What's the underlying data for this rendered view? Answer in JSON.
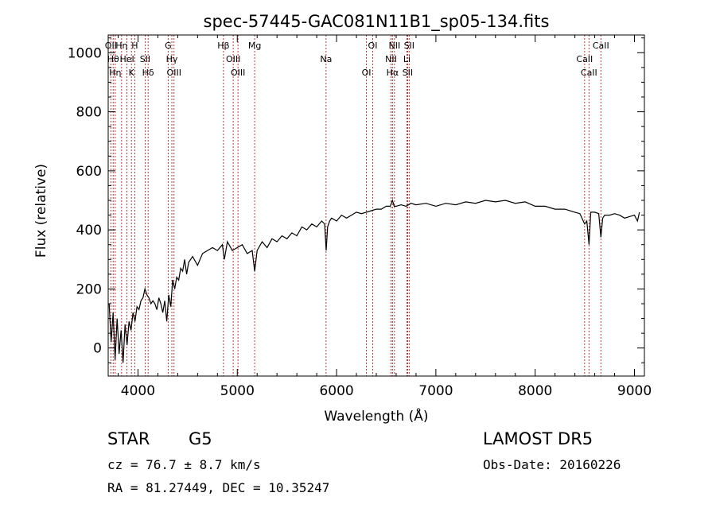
{
  "chart_data": {
    "type": "line",
    "title": "spec-57445-GAC081N11B1_sp05-134.fits",
    "xlabel": "Wavelength (Å)",
    "ylabel": "Flux (relative)",
    "xlim": [
      3700,
      9100
    ],
    "ylim": [
      -95,
      1060
    ],
    "xticks": [
      4000,
      5000,
      6000,
      7000,
      8000,
      9000
    ],
    "yticks": [
      0,
      200,
      400,
      600,
      800,
      1000
    ],
    "line_color": "#000000",
    "marker_color": "#b22222",
    "series": [
      {
        "x": [
          3710,
          3730,
          3750,
          3770,
          3790,
          3810,
          3830,
          3850,
          3870,
          3890,
          3910,
          3930,
          3950,
          3970,
          3990,
          4010,
          4030,
          4050,
          4070,
          4090,
          4110,
          4130,
          4150,
          4170,
          4190,
          4210,
          4230,
          4250,
          4270,
          4290,
          4310,
          4330,
          4350,
          4370,
          4390,
          4410,
          4430,
          4450,
          4470,
          4490,
          4510,
          4550,
          4600,
          4650,
          4700,
          4750,
          4800,
          4850,
          4870,
          4900,
          4950,
          5000,
          5050,
          5100,
          5150,
          5175,
          5200,
          5250,
          5300,
          5350,
          5400,
          5450,
          5500,
          5550,
          5600,
          5650,
          5700,
          5750,
          5800,
          5850,
          5880,
          5895,
          5910,
          5930,
          5950,
          6000,
          6050,
          6100,
          6150,
          6200,
          6250,
          6300,
          6350,
          6400,
          6450,
          6500,
          6540,
          6563,
          6580,
          6600,
          6650,
          6700,
          6750,
          6800,
          6900,
          7000,
          7100,
          7200,
          7300,
          7400,
          7500,
          7600,
          7700,
          7800,
          7900,
          8000,
          8100,
          8200,
          8300,
          8400,
          8450,
          8498,
          8520,
          8542,
          8560,
          8600,
          8640,
          8662,
          8680,
          8700,
          8750,
          8800,
          8850,
          8900,
          8950,
          9000,
          9030,
          9050
        ],
        "y": [
          150,
          20,
          120,
          -40,
          100,
          -20,
          60,
          -50,
          80,
          10,
          90,
          60,
          120,
          90,
          140,
          130,
          160,
          170,
          200,
          180,
          170,
          150,
          160,
          150,
          130,
          170,
          150,
          120,
          160,
          90,
          180,
          140,
          230,
          200,
          240,
          230,
          270,
          260,
          300,
          250,
          290,
          310,
          280,
          320,
          330,
          340,
          330,
          350,
          300,
          360,
          330,
          340,
          350,
          320,
          330,
          260,
          330,
          360,
          340,
          370,
          360,
          380,
          370,
          390,
          380,
          410,
          400,
          420,
          410,
          430,
          420,
          330,
          410,
          430,
          440,
          430,
          450,
          440,
          450,
          460,
          455,
          460,
          465,
          470,
          470,
          480,
          480,
          500,
          480,
          480,
          485,
          480,
          490,
          485,
          490,
          480,
          490,
          485,
          495,
          490,
          500,
          495,
          500,
          490,
          495,
          480,
          480,
          470,
          470,
          460,
          455,
          420,
          430,
          350,
          460,
          460,
          455,
          375,
          440,
          450,
          450,
          455,
          450,
          440,
          445,
          450,
          430,
          460
        ]
      }
    ],
    "line_markers": [
      {
        "w": 3727,
        "label": "OII"
      },
      {
        "w": 3750,
        "label": "Hθ"
      },
      {
        "w": 3771,
        "label": "Hη"
      },
      {
        "w": 3835,
        "label": "Hη"
      },
      {
        "w": 3889,
        "label": "HeI"
      },
      {
        "w": 3934,
        "label": "K"
      },
      {
        "w": 3968,
        "label": "H"
      },
      {
        "w": 4072,
        "label": "SII"
      },
      {
        "w": 4102,
        "label": "Hδ"
      },
      {
        "w": 4304,
        "label": "G"
      },
      {
        "w": 4341,
        "label": "Hγ"
      },
      {
        "w": 4363,
        "label": "OIII"
      },
      {
        "w": 4861,
        "label": "Hβ"
      },
      {
        "w": 4959,
        "label": "OIII"
      },
      {
        "w": 5007,
        "label": "OIII"
      },
      {
        "w": 5175,
        "label": "Mg"
      },
      {
        "w": 5894,
        "label": "Na"
      },
      {
        "w": 6300,
        "label": "OI"
      },
      {
        "w": 6364,
        "label": "OI"
      },
      {
        "w": 6548,
        "label": "NII"
      },
      {
        "w": 6563,
        "label": "Hα"
      },
      {
        "w": 6583,
        "label": "NII"
      },
      {
        "w": 6708,
        "label": "Li"
      },
      {
        "w": 6716,
        "label": "SII"
      },
      {
        "w": 6731,
        "label": "SII"
      },
      {
        "w": 8498,
        "label": "CaII"
      },
      {
        "w": 8542,
        "label": "CaII"
      },
      {
        "w": 8662,
        "label": "CaII"
      }
    ]
  },
  "footer": {
    "object_type": "STAR",
    "subclass": "G5",
    "survey": "LAMOST DR5",
    "redshift": "cz = 76.7 ± 8.7 km/s",
    "obs_date": "Obs-Date: 20160226",
    "coords": "RA =  81.27449, DEC =  10.35247"
  }
}
